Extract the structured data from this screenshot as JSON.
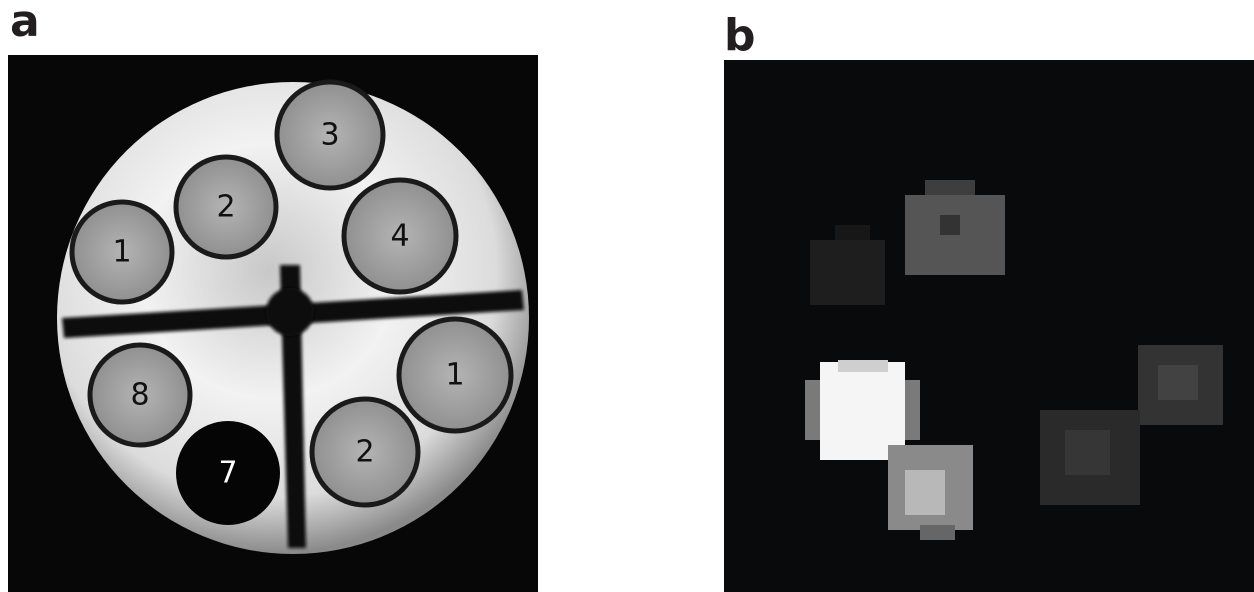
{
  "panels": [
    {
      "label": "a",
      "tubes": [
        {
          "label": "3"
        },
        {
          "label": "2"
        },
        {
          "label": "1"
        },
        {
          "label": "4"
        },
        {
          "label": "8"
        },
        {
          "label": "1"
        },
        {
          "label": "7"
        },
        {
          "label": "2"
        }
      ]
    },
    {
      "label": "b"
    }
  ]
}
